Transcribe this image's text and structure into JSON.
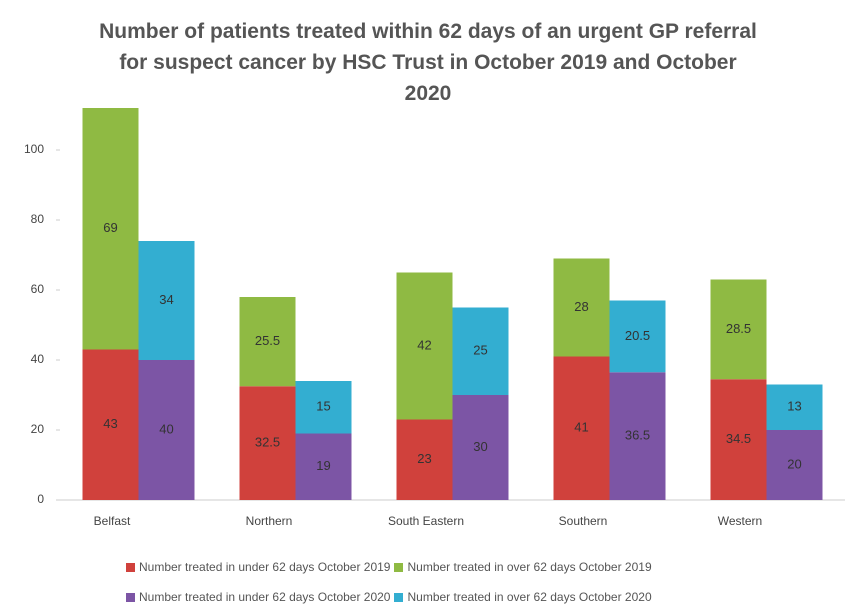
{
  "chart_data": {
    "type": "bar",
    "title": "Number of patients treated within 62 days of an urgent GP referral for suspect cancer by HSC Trust in October 2019 and October 2020",
    "categories": [
      "Belfast",
      "Northern",
      "South Eastern",
      "Southern",
      "Western"
    ],
    "series": [
      {
        "name": "Number treated in under 62 days October 2019",
        "color": "#d0413c",
        "values": [
          43,
          32.5,
          23,
          41,
          34.5
        ]
      },
      {
        "name": "Number treated in over 62 days October 2019",
        "color": "#8fba43",
        "values": [
          69,
          25.5,
          42,
          28,
          28.5
        ]
      },
      {
        "name": "Number treated in under 62 days October 2020",
        "color": "#7c55a5",
        "values": [
          40,
          19,
          30,
          36.5,
          20
        ]
      },
      {
        "name": "Number treated in over 62 days October 2020",
        "color": "#33aed1",
        "values": [
          34,
          15,
          25,
          20.5,
          13
        ]
      }
    ],
    "ylim": [
      0,
      112
    ],
    "yticks": [
      0,
      20,
      40,
      60,
      80,
      100
    ],
    "grid": false
  }
}
